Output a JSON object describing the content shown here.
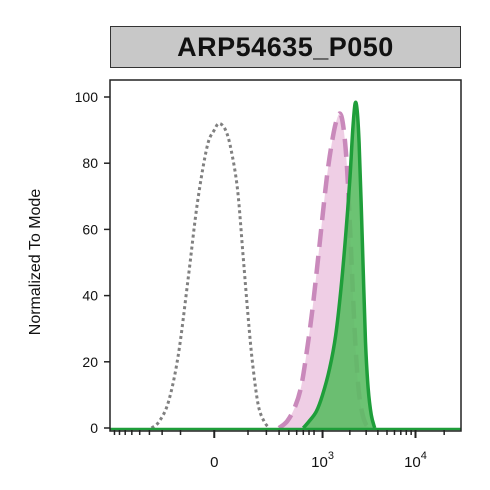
{
  "chart_data": {
    "type": "area",
    "title": "ARP54635_P050",
    "xlabel": "",
    "ylabel": "Normalized To Mode",
    "ylim": [
      0,
      100
    ],
    "yticks": [
      "0",
      "20",
      "40",
      "60",
      "80",
      "100"
    ],
    "xscale": "biexponential",
    "xticks": [
      {
        "value": 0,
        "label": "0"
      },
      {
        "value": 1000,
        "label": "10",
        "exp": "3"
      },
      {
        "value": 10000,
        "label": "10",
        "exp": "4"
      }
    ],
    "series": [
      {
        "style": "dotted-gray-outline",
        "color": "#808080",
        "x": [
          -280,
          -220,
          -160,
          -110,
          -70,
          -40,
          -15,
          0,
          10,
          25,
          40,
          60,
          80,
          100,
          120,
          150,
          185,
          220
        ],
        "y": [
          0,
          2,
          8,
          22,
          45,
          68,
          85,
          90,
          92,
          90,
          84,
          72,
          52,
          34,
          20,
          7,
          2,
          0
        ]
      },
      {
        "style": "dashed-pink-filled",
        "color": "#c989bb",
        "fill": "#ecc6e0",
        "x": [
          300,
          380,
          470,
          560,
          650,
          760,
          880,
          1000,
          1120,
          1250,
          1400,
          1560,
          1700,
          1850,
          2000,
          2150,
          2300,
          2500,
          2750,
          3000,
          3300
        ],
        "y": [
          0,
          2,
          6,
          12,
          22,
          35,
          50,
          64,
          76,
          85,
          92,
          95,
          91,
          80,
          62,
          42,
          25,
          11,
          4,
          1,
          0
        ]
      },
      {
        "style": "solid-green-filled",
        "color": "#1f9e3a",
        "fill": "#5cbd64",
        "x": [
          600,
          700,
          850,
          1000,
          1200,
          1400,
          1600,
          1800,
          2000,
          2150,
          2280,
          2400,
          2520,
          2650,
          2800,
          2950,
          3150,
          3400,
          3700
        ],
        "y": [
          0,
          2,
          5,
          10,
          18,
          28,
          42,
          58,
          75,
          90,
          98,
          96,
          86,
          68,
          46,
          26,
          12,
          4,
          0
        ]
      }
    ]
  }
}
